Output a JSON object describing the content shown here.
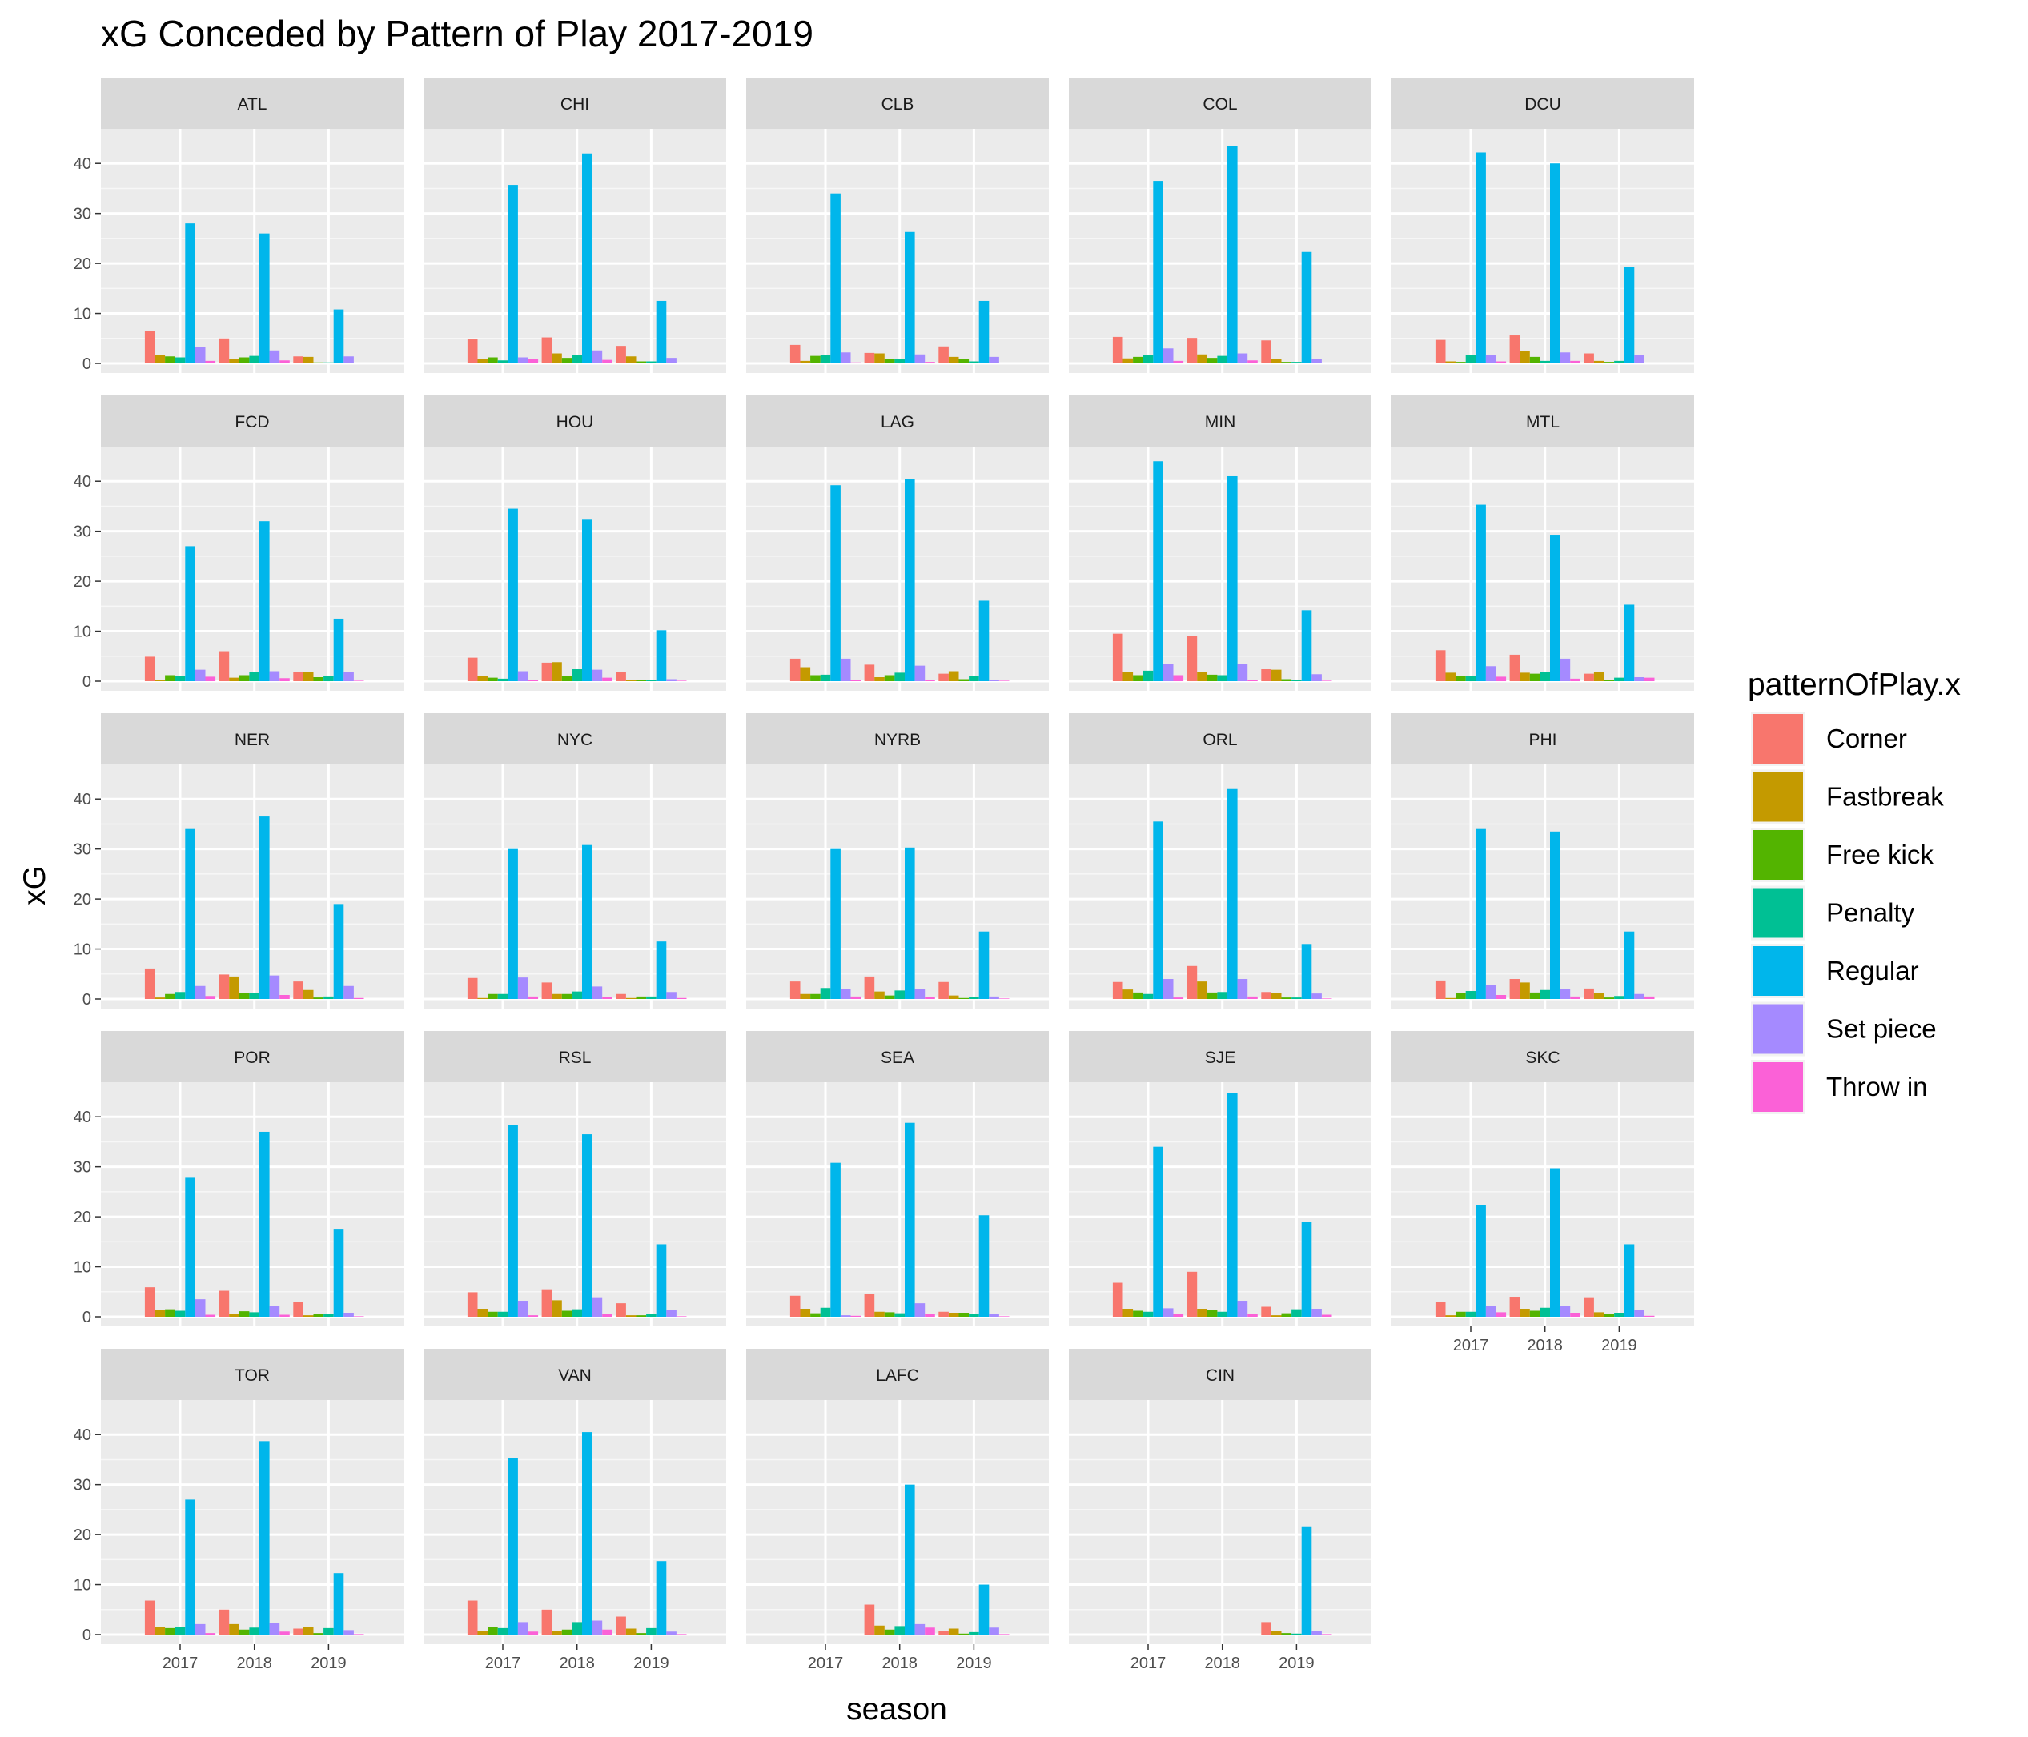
{
  "chart_data": {
    "type": "bar",
    "title": "xG Conceded by Pattern of Play 2017-2019",
    "xlabel": "season",
    "ylabel": "xG",
    "ylim": [
      0,
      45
    ],
    "yticks": [
      0,
      10,
      20,
      30,
      40
    ],
    "categories": [
      "2017",
      "2018",
      "2019"
    ],
    "legend": {
      "title": "patternOfPlay.x",
      "position": "right",
      "entries": [
        "Corner",
        "Fastbreak",
        "Free kick",
        "Penalty",
        "Regular",
        "Set piece",
        "Throw in"
      ]
    },
    "colors": {
      "Corner": "#F8766D",
      "Fastbreak": "#C49A00",
      "Free kick": "#53B400",
      "Penalty": "#00C094",
      "Regular": "#00B6EB",
      "Set piece": "#A58AFF",
      "Throw in": "#FB61D7"
    },
    "grid": true,
    "facets": [
      {
        "team": "ATL",
        "values": [
          [
            6.5,
            1.6,
            1.4,
            1.2,
            28.0,
            3.3,
            0.5
          ],
          [
            5.0,
            0.8,
            1.2,
            1.5,
            26.0,
            2.6,
            0.6
          ],
          [
            1.4,
            1.3,
            0.2,
            0.2,
            10.8,
            1.4,
            0.1
          ]
        ]
      },
      {
        "team": "CHI",
        "values": [
          [
            4.8,
            0.8,
            1.2,
            0.6,
            35.7,
            1.2,
            0.9
          ],
          [
            5.2,
            2.0,
            1.1,
            1.7,
            42.0,
            2.6,
            0.7
          ],
          [
            3.5,
            1.4,
            0.4,
            0.4,
            12.5,
            1.1,
            0.1
          ]
        ]
      },
      {
        "team": "CLB",
        "values": [
          [
            3.7,
            0.5,
            1.5,
            1.6,
            34.0,
            2.2,
            0.2
          ],
          [
            2.1,
            2.0,
            0.9,
            0.8,
            26.3,
            1.8,
            0.3
          ],
          [
            3.4,
            1.3,
            0.8,
            0.4,
            12.5,
            1.3,
            0.1
          ]
        ]
      },
      {
        "team": "COL",
        "values": [
          [
            5.3,
            1.0,
            1.3,
            1.6,
            36.5,
            3.0,
            0.5
          ],
          [
            5.1,
            1.8,
            1.1,
            1.5,
            43.5,
            2.0,
            0.6
          ],
          [
            4.6,
            0.8,
            0.3,
            0.3,
            22.3,
            0.9,
            0.1
          ]
        ]
      },
      {
        "team": "DCU",
        "values": [
          [
            4.7,
            0.4,
            0.3,
            1.7,
            42.2,
            1.6,
            0.4
          ],
          [
            5.6,
            2.5,
            1.3,
            0.5,
            40.0,
            2.2,
            0.5
          ],
          [
            2.0,
            0.5,
            0.3,
            0.5,
            19.3,
            1.6,
            0.1
          ]
        ]
      },
      {
        "team": "FCD",
        "values": [
          [
            4.9,
            0.3,
            1.2,
            1.0,
            27.0,
            2.3,
            0.9
          ],
          [
            6.0,
            0.7,
            1.2,
            1.8,
            32.0,
            2.0,
            0.6
          ],
          [
            1.8,
            1.8,
            0.8,
            1.1,
            12.5,
            1.9,
            0.1
          ]
        ]
      },
      {
        "team": "HOU",
        "values": [
          [
            4.7,
            1.0,
            0.7,
            0.5,
            34.5,
            2.0,
            0.2
          ],
          [
            3.7,
            3.8,
            1.0,
            2.4,
            32.3,
            2.3,
            0.7
          ],
          [
            1.8,
            0.2,
            0.2,
            0.3,
            10.2,
            0.4,
            0.1
          ]
        ]
      },
      {
        "team": "LAG",
        "values": [
          [
            4.5,
            2.8,
            1.2,
            1.3,
            39.2,
            4.5,
            0.3
          ],
          [
            3.3,
            0.8,
            1.2,
            1.7,
            40.5,
            3.1,
            0.2
          ],
          [
            1.5,
            2.0,
            0.4,
            1.1,
            16.1,
            0.3,
            0.1
          ]
        ]
      },
      {
        "team": "MIN",
        "values": [
          [
            9.5,
            1.8,
            1.2,
            2.1,
            44.0,
            3.4,
            1.2
          ],
          [
            9.0,
            1.8,
            1.3,
            1.2,
            41.0,
            3.5,
            0.2
          ],
          [
            2.4,
            2.3,
            0.4,
            0.3,
            14.2,
            1.4,
            0.1
          ]
        ]
      },
      {
        "team": "MTL",
        "values": [
          [
            6.2,
            1.7,
            1.0,
            1.0,
            35.3,
            3.0,
            0.9
          ],
          [
            5.3,
            1.7,
            1.5,
            1.8,
            29.3,
            4.5,
            0.5
          ],
          [
            1.5,
            1.8,
            0.3,
            0.7,
            15.3,
            0.8,
            0.7
          ]
        ]
      },
      {
        "team": "NER",
        "values": [
          [
            6.1,
            0.3,
            1.0,
            1.4,
            34.0,
            2.6,
            0.6
          ],
          [
            4.9,
            4.5,
            1.2,
            1.2,
            36.5,
            4.7,
            0.8
          ],
          [
            3.5,
            1.8,
            0.3,
            0.5,
            19.0,
            2.6,
            0.2
          ]
        ]
      },
      {
        "team": "NYC",
        "values": [
          [
            4.2,
            0.2,
            1.0,
            1.0,
            30.0,
            4.3,
            0.5
          ],
          [
            3.3,
            1.0,
            1.0,
            1.5,
            30.8,
            2.5,
            0.4
          ],
          [
            1.0,
            0.2,
            0.5,
            0.5,
            11.5,
            1.4,
            0.2
          ]
        ]
      },
      {
        "team": "NYRB",
        "values": [
          [
            3.5,
            1.0,
            1.0,
            2.2,
            30.0,
            2.0,
            0.5
          ],
          [
            4.5,
            1.5,
            0.7,
            1.7,
            30.3,
            2.0,
            0.4
          ],
          [
            3.4,
            0.7,
            0.2,
            0.4,
            13.5,
            0.5,
            0.1
          ]
        ]
      },
      {
        "team": "ORL",
        "values": [
          [
            3.4,
            1.9,
            1.3,
            1.0,
            35.5,
            4.0,
            0.3
          ],
          [
            6.6,
            3.5,
            1.3,
            1.4,
            42.0,
            4.0,
            0.5
          ],
          [
            1.4,
            1.2,
            0.3,
            0.3,
            11.0,
            1.1,
            0.1
          ]
        ]
      },
      {
        "team": "PHI",
        "values": [
          [
            3.7,
            0.2,
            1.2,
            1.6,
            34.0,
            2.8,
            0.8
          ],
          [
            4.0,
            3.3,
            1.3,
            1.8,
            33.5,
            2.0,
            0.5
          ],
          [
            2.1,
            1.2,
            0.3,
            0.6,
            13.5,
            1.0,
            0.5
          ]
        ]
      },
      {
        "team": "POR",
        "values": [
          [
            5.9,
            1.3,
            1.5,
            1.2,
            27.8,
            3.5,
            0.4
          ],
          [
            5.2,
            0.6,
            1.1,
            0.9,
            37.0,
            2.2,
            0.4
          ],
          [
            3.0,
            0.3,
            0.5,
            0.6,
            17.6,
            0.8,
            0.1
          ]
        ]
      },
      {
        "team": "RSL",
        "values": [
          [
            4.9,
            1.6,
            1.0,
            1.0,
            38.3,
            3.2,
            0.3
          ],
          [
            5.5,
            3.3,
            1.2,
            1.5,
            36.5,
            3.9,
            0.6
          ],
          [
            2.7,
            0.3,
            0.3,
            0.5,
            14.5,
            1.3,
            0.1
          ]
        ]
      },
      {
        "team": "SEA",
        "values": [
          [
            4.2,
            1.6,
            0.7,
            1.8,
            30.8,
            0.3,
            0.2
          ],
          [
            4.5,
            1.0,
            0.9,
            0.7,
            38.8,
            2.7,
            0.5
          ],
          [
            1.0,
            0.8,
            0.8,
            0.5,
            20.3,
            0.5,
            0.1
          ]
        ]
      },
      {
        "team": "SJE",
        "values": [
          [
            6.8,
            1.6,
            1.2,
            1.0,
            34.0,
            1.7,
            0.6
          ],
          [
            9.0,
            1.6,
            1.3,
            1.0,
            44.7,
            3.2,
            0.5
          ],
          [
            2.0,
            0.3,
            0.7,
            1.5,
            19.0,
            1.6,
            0.4
          ]
        ]
      },
      {
        "team": "SKC",
        "values": [
          [
            3.0,
            0.3,
            1.0,
            1.0,
            22.3,
            2.1,
            0.9
          ],
          [
            4.0,
            1.6,
            1.2,
            1.8,
            29.7,
            2.1,
            0.8
          ],
          [
            3.9,
            0.9,
            0.5,
            0.8,
            14.5,
            1.4,
            0.2
          ]
        ]
      },
      {
        "team": "TOR",
        "values": [
          [
            6.8,
            1.5,
            1.3,
            1.5,
            27.0,
            2.1,
            0.3
          ],
          [
            5.0,
            2.1,
            1.0,
            1.4,
            38.7,
            2.4,
            0.6
          ],
          [
            1.2,
            1.5,
            0.3,
            1.3,
            12.3,
            0.9,
            0.1
          ]
        ]
      },
      {
        "team": "VAN",
        "values": [
          [
            6.8,
            0.8,
            1.5,
            1.3,
            35.3,
            2.5,
            0.6
          ],
          [
            5.0,
            0.8,
            1.0,
            2.5,
            40.5,
            2.8,
            1.0
          ],
          [
            3.6,
            1.2,
            0.3,
            1.3,
            14.7,
            0.6,
            0.1
          ]
        ]
      },
      {
        "team": "LAFC",
        "values": [
          [
            0,
            0,
            0,
            0,
            0,
            0,
            0
          ],
          [
            6.0,
            1.8,
            1.0,
            1.7,
            30.0,
            2.1,
            1.4
          ],
          [
            0.8,
            1.2,
            0.2,
            0.5,
            10.0,
            1.4,
            0.1
          ]
        ]
      },
      {
        "team": "CIN",
        "values": [
          [
            0,
            0,
            0,
            0,
            0,
            0,
            0
          ],
          [
            0,
            0,
            0,
            0,
            0,
            0,
            0
          ],
          [
            2.5,
            0.8,
            0.3,
            0.2,
            21.5,
            0.8,
            0.1
          ]
        ]
      }
    ],
    "xaxis_shown_under": [
      "SKC",
      "TOR",
      "VAN",
      "LAFC",
      "CIN"
    ],
    "yaxis_shown_on_columns": [
      0
    ]
  }
}
